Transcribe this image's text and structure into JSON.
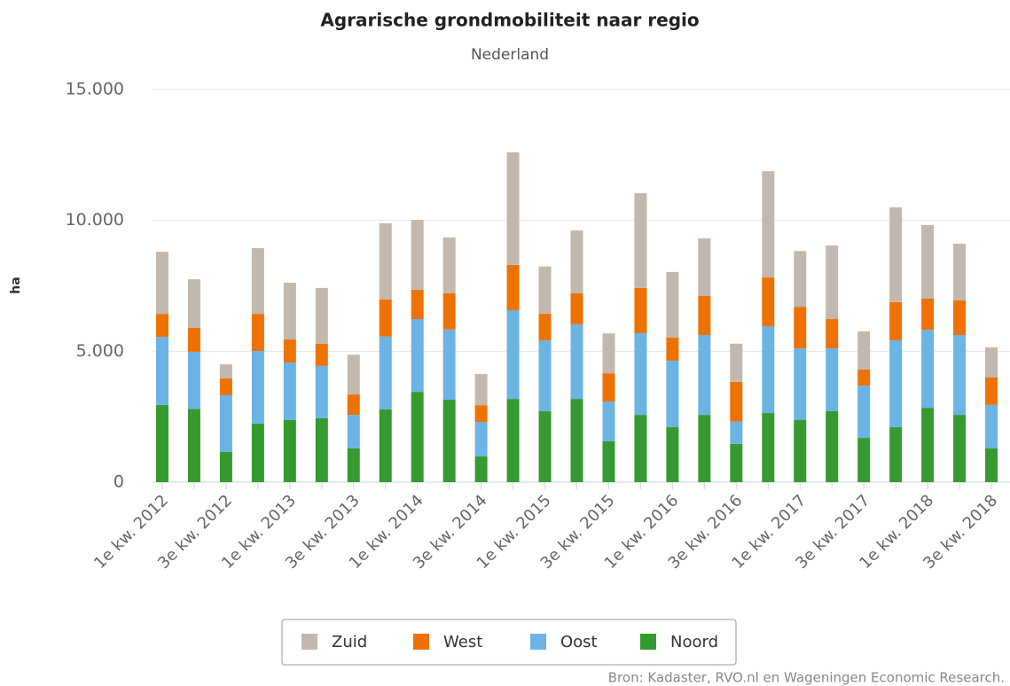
{
  "chart_data": {
    "type": "stacked_bar",
    "title": "Agrarische grondmobiliteit naar regio",
    "subtitle": "Nederland",
    "y_axis_label": "ha",
    "source": "Bron: Kadaster, RVO.nl en Wageningen Economic Research.",
    "categories": [
      "1e kw. 2012",
      null,
      "3e kw. 2012",
      null,
      "1e kw. 2013",
      null,
      "3e kw. 2013",
      null,
      "1e kw. 2014",
      null,
      "3e kw. 2014",
      null,
      "1e kw. 2015",
      null,
      "3e kw. 2015",
      null,
      "1e kw. 2016",
      null,
      "3e kw. 2016",
      null,
      "1e kw. 2017",
      null,
      "3e kw. 2017",
      null,
      "1e kw. 2018",
      null,
      "3e kw. 2018"
    ],
    "series": [
      {
        "name": "Zuid",
        "color": "#c2b8ad",
        "values": [
          2370,
          1860,
          540,
          2510,
          2170,
          2130,
          1520,
          2910,
          2670,
          2130,
          1190,
          4300,
          1800,
          2400,
          1520,
          3620,
          2510,
          2200,
          1460,
          4060,
          2130,
          2810,
          1460,
          3620,
          2810,
          2170,
          1150
        ]
      },
      {
        "name": "West",
        "color": "#ee7203",
        "values": [
          880,
          910,
          640,
          1420,
          880,
          850,
          780,
          1420,
          1120,
          1390,
          640,
          1730,
          1020,
          1190,
          1080,
          1730,
          880,
          1490,
          1520,
          1860,
          1590,
          1120,
          610,
          1460,
          1190,
          1320,
          1050
        ]
      },
      {
        "name": "Oost",
        "color": "#6cb4e4",
        "values": [
          2600,
          2180,
          2170,
          2770,
          2200,
          2000,
          1280,
          2780,
          2780,
          2680,
          1320,
          3390,
          2710,
          2850,
          1520,
          3120,
          2540,
          3050,
          850,
          3320,
          2740,
          2400,
          2000,
          3320,
          2980,
          3050,
          1660
        ]
      },
      {
        "name": "Noord",
        "color": "#349b31",
        "values": [
          2950,
          2800,
          1150,
          2240,
          2370,
          2440,
          1290,
          2780,
          3450,
          3150,
          980,
          3180,
          2710,
          3180,
          1560,
          2570,
          2100,
          2570,
          1460,
          2640,
          2370,
          2710,
          1690,
          2100,
          2840,
          2570,
          1290
        ]
      }
    ],
    "ylim": [
      0,
      15000
    ],
    "yticks": [
      0,
      {
        "value": 5000,
        "label": "5.000"
      },
      {
        "value": 10000,
        "label": "10.000"
      },
      {
        "value": 15000,
        "label": "15.000"
      }
    ],
    "grid": true
  }
}
